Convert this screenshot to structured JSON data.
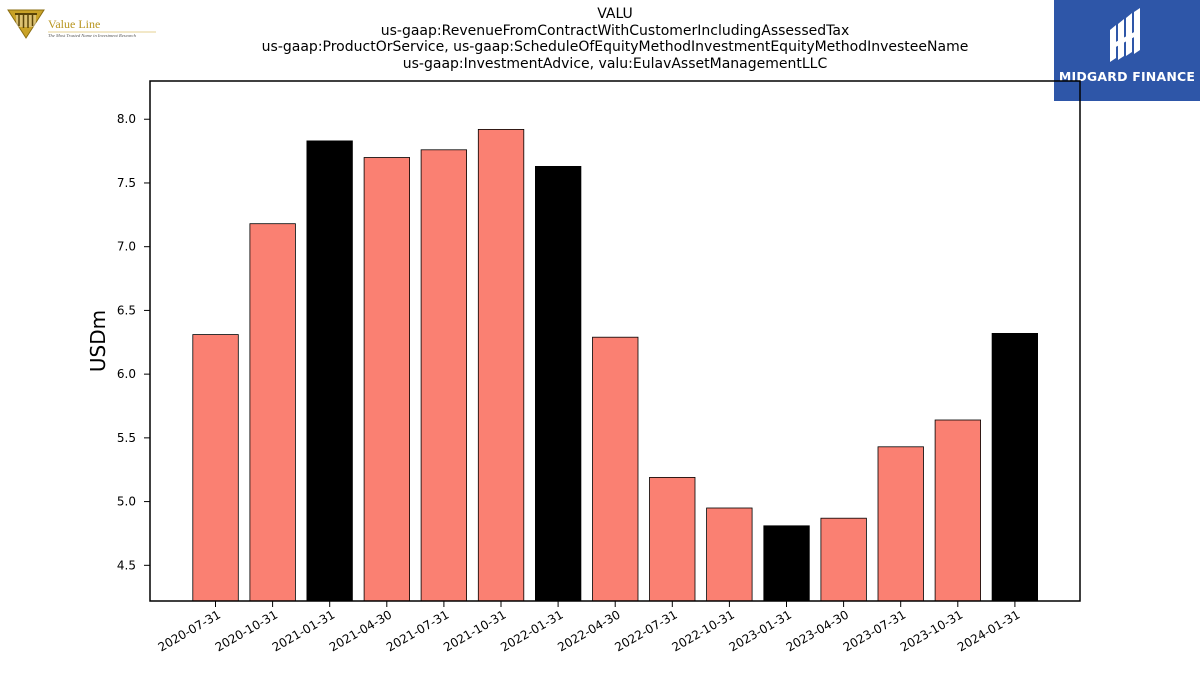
{
  "header": {
    "title_lines": [
      "VALU",
      "us-gaap:RevenueFromContractWithCustomerIncludingAssessedTax",
      "us-gaap:ProductOrService, us-gaap:ScheduleOfEquityMethodInvestmentEquityMethodInvesteeName",
      "us-gaap:InvestmentAdvice, valu:EulavAssetManagementLLC"
    ]
  },
  "branding": {
    "left_logo_text": "Value Line",
    "left_logo_tagline": "The Most Trusted Name in Investment Research",
    "right_logo_text": "MIDGARD FINANCE",
    "right_logo_color": "#2e56a8"
  },
  "chart_data": {
    "type": "bar",
    "ylabel": "USDm",
    "xlabel": "",
    "ylim": [
      4.22,
      8.3
    ],
    "yticks": [
      "4.5",
      "5.0",
      "5.5",
      "6.0",
      "6.5",
      "7.0",
      "7.5",
      "8.0"
    ],
    "categories": [
      "2020-07-31",
      "2020-10-31",
      "2021-01-31",
      "2021-04-30",
      "2021-07-31",
      "2021-10-31",
      "2022-01-31",
      "2022-04-30",
      "2022-07-31",
      "2022-10-31",
      "2023-01-31",
      "2023-04-30",
      "2023-07-31",
      "2023-10-31",
      "2024-01-31"
    ],
    "values": [
      6.31,
      7.18,
      7.83,
      7.7,
      7.76,
      7.92,
      7.63,
      6.29,
      5.19,
      4.95,
      4.81,
      4.87,
      5.43,
      5.64,
      6.32
    ],
    "highlight": [
      false,
      false,
      true,
      false,
      false,
      false,
      true,
      false,
      false,
      false,
      true,
      false,
      false,
      false,
      true
    ],
    "colors": {
      "normal": "#fa8072",
      "highlight": "#000000",
      "edge": "#000000"
    },
    "grid": false,
    "legend": "none"
  }
}
